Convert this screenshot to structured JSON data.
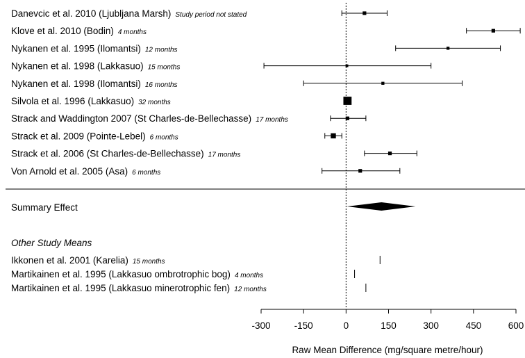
{
  "chart_data": {
    "type": "forest",
    "xlabel": "Raw Mean Difference (mg/square metre/hour)",
    "xlim": [
      -300,
      600
    ],
    "xticks": [
      -300,
      -150,
      0,
      150,
      300,
      450,
      600
    ],
    "reference_line": 0,
    "studies": [
      {
        "label": "Danevcic et al. 2010 (Ljubljana Marsh)",
        "duration": "Study period not stated",
        "estimate": 65,
        "lower": -15,
        "upper": 145,
        "weight": 1
      },
      {
        "label": "Klove et al. 2010 (Bodin)",
        "duration": "4 months",
        "estimate": 520,
        "lower": 425,
        "upper": 615,
        "weight": 1
      },
      {
        "label": "Nykanen et al. 1995 (Ilomantsi)",
        "duration": "12 months",
        "estimate": 360,
        "lower": 175,
        "upper": 545,
        "weight": 0.6
      },
      {
        "label": "Nykanen et al. 1998 (Lakkasuo)",
        "duration": "15 months",
        "estimate": 3,
        "lower": -290,
        "upper": 300,
        "weight": 0.4
      },
      {
        "label": "Nykanen et al. 1998 (Ilomantsi)",
        "duration": "16 months",
        "estimate": 130,
        "lower": -150,
        "upper": 410,
        "weight": 0.6
      },
      {
        "label": "Silvola et al. 1996 (Lakkasuo)",
        "duration": "32 months",
        "estimate": 5,
        "lower": 5,
        "upper": 5,
        "weight": 4
      },
      {
        "label": "Strack and Waddington 2007 (St Charles-de-Bellechasse)",
        "duration": "17 months",
        "estimate": 5,
        "lower": -55,
        "upper": 70,
        "weight": 1
      },
      {
        "label": "Strack et al. 2009 (Pointe-Lebel)",
        "duration": "6 months",
        "estimate": -45,
        "lower": -75,
        "upper": -15,
        "weight": 2
      },
      {
        "label": "Strack et al. 2006 (St Charles-de-Bellechasse)",
        "duration": "17 months",
        "estimate": 155,
        "lower": 65,
        "upper": 250,
        "weight": 1
      },
      {
        "label": "Von Arnold et al. 2005 (Asa)",
        "duration": "6 months",
        "estimate": 50,
        "lower": -85,
        "upper": 190,
        "weight": 1
      }
    ],
    "summary": {
      "label": "Summary Effect",
      "estimate": 125,
      "lower": 3,
      "upper": 245
    },
    "other_header": "Other Study Means",
    "other_means": [
      {
        "label": "Ikkonen et al. 2001 (Karelia)",
        "duration": "15 months",
        "value": 120
      },
      {
        "label": "Martikainen et al. 1995 (Lakkasuo ombrotrophic bog)",
        "duration": "4 months",
        "value": 30
      },
      {
        "label": "Martikainen et al. 1995 (Lakkasuo minerotrophic fen)",
        "duration": "12 months",
        "value": 70
      }
    ]
  }
}
